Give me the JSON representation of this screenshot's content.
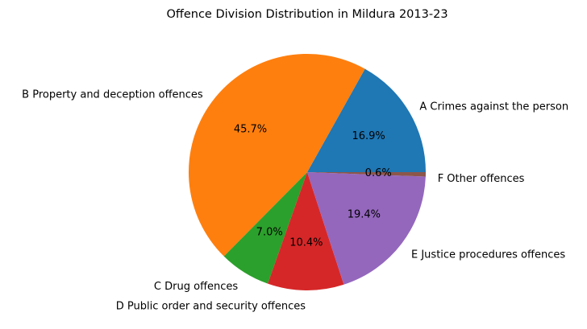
{
  "chart_data": {
    "type": "pie",
    "title": "Offence Division Distribution in Mildura 2013-23",
    "start_angle_deg": 0,
    "direction": "counterclockwise",
    "slices": [
      {
        "label": "A Crimes against the person",
        "value": 16.9,
        "pct_label": "16.9%",
        "color": "#1f77b4"
      },
      {
        "label": "B Property and deception offences",
        "value": 45.7,
        "pct_label": "45.7%",
        "color": "#ff7f0e"
      },
      {
        "label": "C Drug offences",
        "value": 7.0,
        "pct_label": "7.0%",
        "color": "#2ca02c"
      },
      {
        "label": "D Public order and security offences",
        "value": 10.4,
        "pct_label": "10.4%",
        "color": "#d62728"
      },
      {
        "label": "E Justice procedures offences",
        "value": 19.4,
        "pct_label": "19.4%",
        "color": "#9467bd"
      },
      {
        "label": "F Other offences",
        "value": 0.6,
        "pct_label": "0.6%",
        "color": "#8c564b"
      }
    ]
  }
}
